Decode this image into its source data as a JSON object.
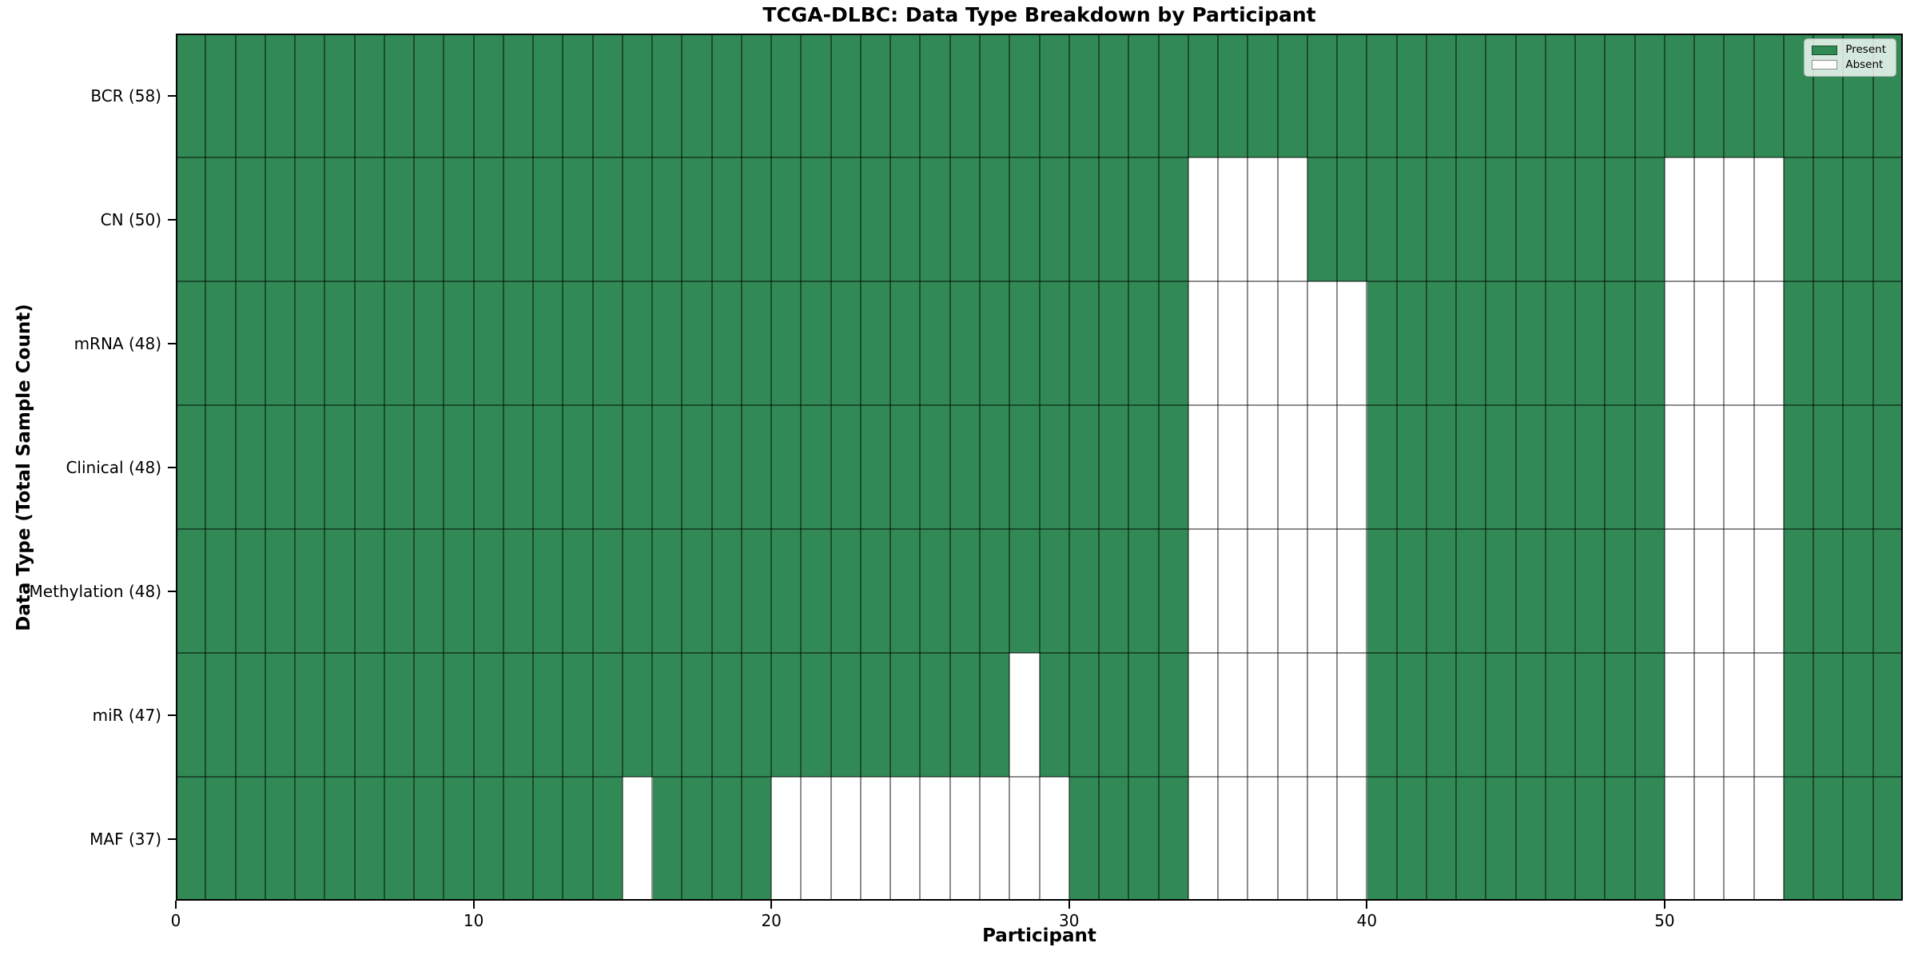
{
  "chart_data": {
    "type": "heatmap",
    "title": "TCGA-DLBC: Data Type Breakdown by Participant",
    "xlabel": "Participant",
    "ylabel": "Data Type (Total Sample Count)",
    "n_participants": 58,
    "xlim": [
      0,
      58
    ],
    "x_ticks": [
      0,
      10,
      20,
      30,
      40,
      50
    ],
    "grid": true,
    "legend_position": "upper right",
    "colors": {
      "present": "#318a55",
      "absent": "#ffffff"
    },
    "legend": [
      {
        "label": "Present",
        "color": "#318a55"
      },
      {
        "label": "Absent",
        "color": "#ffffff"
      }
    ],
    "rows": [
      {
        "label": "BCR (58)",
        "data_type": "BCR",
        "total_samples": 58,
        "absent_participants": []
      },
      {
        "label": "CN (50)",
        "data_type": "CN",
        "total_samples": 50,
        "absent_participants": [
          34,
          35,
          36,
          37,
          50,
          51,
          52,
          53
        ]
      },
      {
        "label": "mRNA (48)",
        "data_type": "mRNA",
        "total_samples": 48,
        "absent_participants": [
          34,
          35,
          36,
          37,
          38,
          39,
          50,
          51,
          52,
          53
        ]
      },
      {
        "label": "Clinical (48)",
        "data_type": "Clinical",
        "total_samples": 48,
        "absent_participants": [
          34,
          35,
          36,
          37,
          38,
          39,
          50,
          51,
          52,
          53
        ]
      },
      {
        "label": "Methylation (48)",
        "data_type": "Methylation",
        "total_samples": 48,
        "absent_participants": [
          34,
          35,
          36,
          37,
          38,
          39,
          50,
          51,
          52,
          53
        ]
      },
      {
        "label": "miR (47)",
        "data_type": "miR",
        "total_samples": 47,
        "absent_participants": [
          28,
          34,
          35,
          36,
          37,
          38,
          39,
          50,
          51,
          52,
          53
        ]
      },
      {
        "label": "MAF (37)",
        "data_type": "MAF",
        "total_samples": 37,
        "absent_participants": [
          15,
          20,
          21,
          22,
          23,
          24,
          25,
          26,
          27,
          28,
          29,
          34,
          35,
          36,
          37,
          38,
          39,
          50,
          51,
          52,
          53
        ]
      }
    ]
  }
}
